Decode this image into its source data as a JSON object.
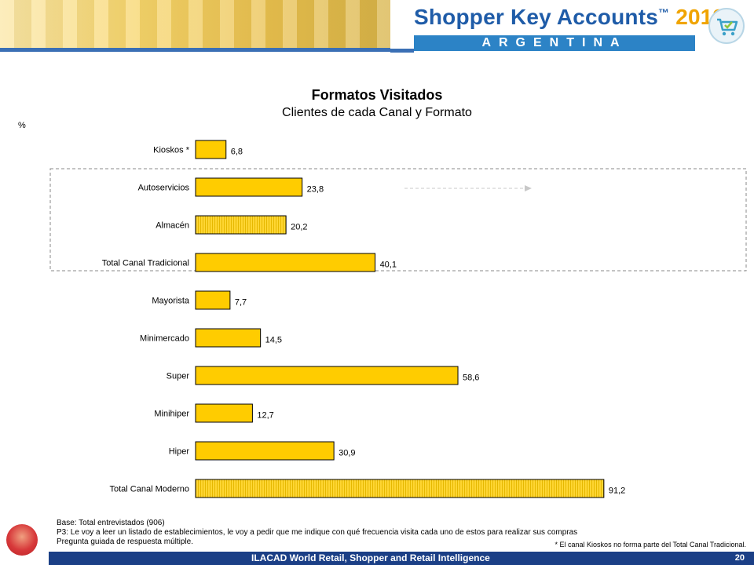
{
  "header": {
    "brand_name": "Shopper Key Accounts",
    "brand_tm": "™",
    "brand_year": "2013",
    "country": "ARGENTINA",
    "cart_icon": "shopping-cart-icon",
    "colors": {
      "brand_blue": "#1f5ca8",
      "brand_year": "#f0a400",
      "country_bar": "#2c83c6"
    }
  },
  "titles": {
    "title": "Formatos Visitados",
    "subtitle": "Clientes de cada Canal y Formato",
    "unit": "%"
  },
  "chart_data": {
    "type": "bar",
    "orientation": "horizontal",
    "title": "Formatos Visitados",
    "subtitle": "Clientes de cada Canal y Formato",
    "unit": "%",
    "categories": [
      "Kioskos *",
      "Autoservicios",
      "Almacén",
      "Total Canal Tradicional",
      "Mayorista",
      "Minimercado",
      "Super",
      "Minihiper",
      "Hiper",
      "Total Canal Moderno"
    ],
    "values": [
      6.8,
      23.8,
      20.2,
      40.1,
      7.7,
      14.5,
      58.6,
      12.7,
      30.9,
      91.2
    ],
    "value_labels": [
      "6,8",
      "23,8",
      "20,2",
      "40,1",
      "7,7",
      "14,5",
      "58,6",
      "12,7",
      "30,9",
      "91,2"
    ],
    "hatched": [
      false,
      false,
      true,
      false,
      false,
      false,
      false,
      false,
      false,
      true
    ],
    "xlim": [
      0,
      100
    ],
    "grid": false,
    "legend": "none",
    "colors": {
      "bar_fill": "#ffcc00",
      "bar_border": "#000000",
      "hatch": "#e6b800"
    },
    "annotations": {
      "group_box_categories": [
        "Autoservicios",
        "Almacén",
        "Total Canal Tradicional"
      ],
      "arrow_category": "Autoservicios"
    }
  },
  "notes": {
    "base": "Base: Total entrevistados (906)",
    "question": "P3: Le voy a leer un listado de establecimientos, le voy a pedir que me indique con qué frecuencia visita cada uno de estos para realizar sus compras",
    "guidance": "Pregunta guiada de respuesta múltiple.",
    "asterisk_note": "* El canal Kioskos no forma parte del Total Canal Tradicional."
  },
  "footer": {
    "text": "ILACAD World Retail, Shopper and Retail Intelligence",
    "page_number": "20",
    "colors": {
      "bar": "#1b3f86"
    }
  }
}
